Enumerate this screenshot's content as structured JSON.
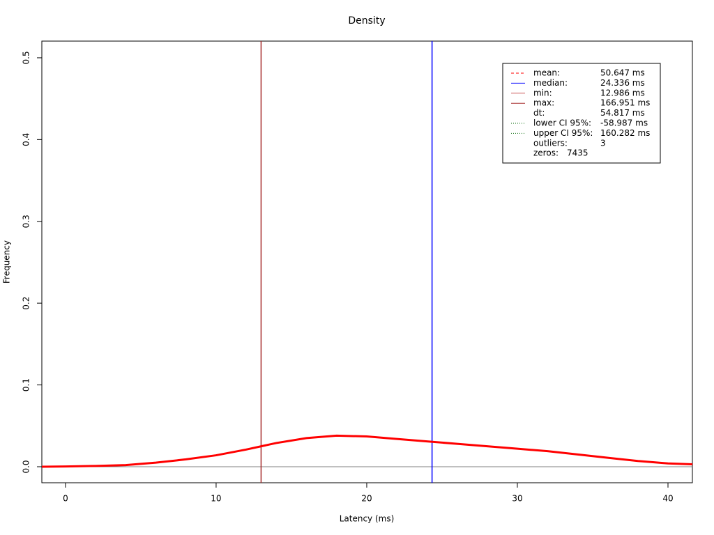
{
  "chart_data": {
    "type": "line",
    "title": "Density",
    "x_label": "Latency (ms)",
    "y_label": "Frequency",
    "x": [
      -1.57,
      0,
      2,
      4,
      6,
      8,
      10,
      12,
      13,
      14,
      16,
      18,
      20,
      22,
      24,
      26,
      28,
      30,
      32,
      34,
      36,
      38,
      40,
      41.62
    ],
    "values": [
      0.0,
      0.0003,
      0.001,
      0.002,
      0.005,
      0.009,
      0.014,
      0.021,
      0.025,
      0.029,
      0.035,
      0.038,
      0.037,
      0.034,
      0.031,
      0.028,
      0.025,
      0.022,
      0.019,
      0.015,
      0.011,
      0.007,
      0.004,
      0.003
    ],
    "color": "#ff0000",
    "xlim": [
      -1.57,
      41.62
    ],
    "ylim": [
      -0.0196,
      0.5204
    ],
    "xticks": [
      0,
      10,
      20,
      30,
      40
    ],
    "yticks": [
      {
        "value": 0,
        "label": "0.0"
      },
      0.1,
      0.2,
      0.3,
      0.4,
      0.5
    ],
    "hline": {
      "y": 0,
      "color": "#808080"
    },
    "vlines": [
      {
        "x": 12.986,
        "color": "#a52a2a"
      },
      {
        "x": 24.336,
        "color": "#0000ff"
      }
    ],
    "legend": [
      {
        "label": "mean:",
        "value": "50.647 ms",
        "color": "#ff0000",
        "style": "dashed"
      },
      {
        "label": "median:",
        "value": "24.336 ms",
        "color": "#0000ff",
        "style": "solid"
      },
      {
        "label": "min:",
        "value": "12.986 ms",
        "color": "#cd5c5c",
        "style": "solid"
      },
      {
        "label": "max:",
        "value": "166.951 ms",
        "color": "#a52a2a",
        "style": "solid"
      },
      {
        "label": "dt:",
        "value": "54.817 ms"
      },
      {
        "label": "lower CI 95%:",
        "value": "-58.987 ms",
        "color": "#006400",
        "style": "dotted"
      },
      {
        "label": "upper CI 95%:",
        "value": "160.282 ms",
        "color": "#006400",
        "style": "dotted"
      },
      {
        "label": "outliers:",
        "value": "3"
      },
      {
        "label": "zeros:",
        "value": "7435"
      }
    ]
  }
}
